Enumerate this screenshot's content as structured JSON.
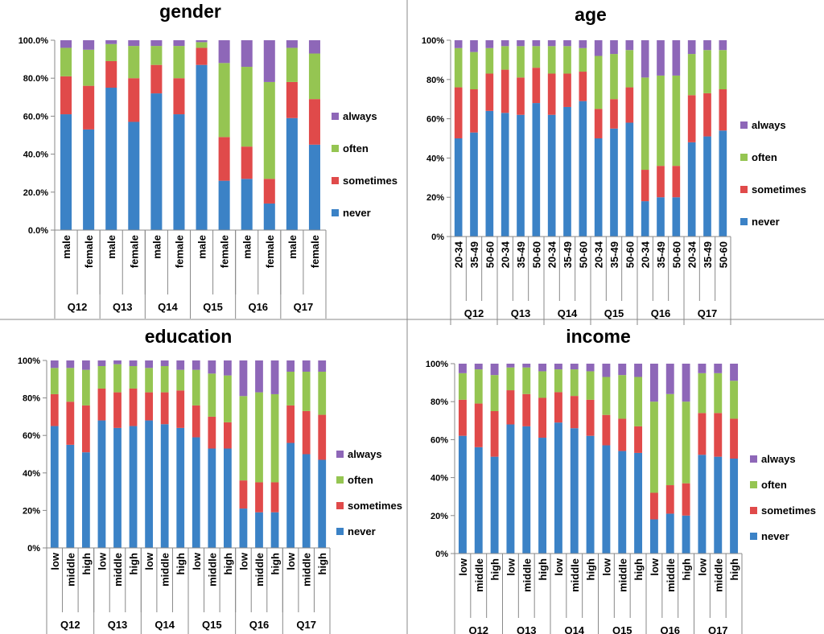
{
  "chart_data": [
    {
      "type": "bar",
      "stacked": true,
      "title": "gender",
      "categories": [
        "male",
        "female",
        "male",
        "female",
        "male",
        "female",
        "male",
        "female",
        "male",
        "female",
        "male",
        "female"
      ],
      "groups": [
        "Q12",
        "Q13",
        "Q14",
        "Q15",
        "Q16",
        "Q17"
      ],
      "series": [
        {
          "name": "never",
          "color": "#3b82c6",
          "values": [
            61,
            53,
            75,
            57,
            72,
            61,
            87,
            26,
            27,
            14,
            59,
            45
          ]
        },
        {
          "name": "sometimes",
          "color": "#e04a4a",
          "values": [
            20,
            23,
            14,
            23,
            15,
            19,
            9,
            23,
            17,
            13,
            19,
            24
          ]
        },
        {
          "name": "often",
          "color": "#95c552",
          "values": [
            15,
            19,
            9,
            17,
            10,
            17,
            3,
            39,
            42,
            51,
            18,
            24
          ]
        },
        {
          "name": "always",
          "color": "#8e67b8",
          "values": [
            4,
            5,
            2,
            3,
            3,
            3,
            1,
            12,
            14,
            22,
            4,
            7
          ]
        }
      ],
      "ylim": [
        0,
        100
      ],
      "yticks": [
        {
          "value": 0,
          "label": "0.0%"
        },
        {
          "value": 20,
          "label": "20.0%"
        },
        {
          "value": 40,
          "label": "40.0%"
        },
        {
          "value": 60,
          "label": "60.0%"
        },
        {
          "value": 80,
          "label": "80.0%"
        },
        {
          "value": 100,
          "label": "100.0%"
        }
      ],
      "legend": "right"
    },
    {
      "type": "bar",
      "stacked": true,
      "title": "age",
      "categories": [
        "20-34",
        "35-49",
        "50-60",
        "20-34",
        "35-49",
        "50-60",
        "20-34",
        "35-49",
        "50-60",
        "20-34",
        "35-49",
        "50-60",
        "20-34",
        "35-49",
        "50-60",
        "20-34",
        "35-49",
        "50-60"
      ],
      "groups": [
        "Q12",
        "Q13",
        "Q14",
        "Q15",
        "Q16",
        "Q17"
      ],
      "series": [
        {
          "name": "never",
          "color": "#3b82c6",
          "values": [
            50,
            53,
            64,
            63,
            62,
            68,
            62,
            66,
            69,
            50,
            55,
            58,
            18,
            20,
            20,
            48,
            51,
            54
          ]
        },
        {
          "name": "sometimes",
          "color": "#e04a4a",
          "values": [
            26,
            22,
            19,
            22,
            19,
            18,
            21,
            17,
            15,
            15,
            15,
            18,
            16,
            16,
            16,
            24,
            22,
            21
          ]
        },
        {
          "name": "often",
          "color": "#95c552",
          "values": [
            20,
            19,
            13,
            12,
            16,
            11,
            14,
            14,
            12,
            27,
            23,
            19,
            47,
            46,
            46,
            21,
            22,
            20
          ]
        },
        {
          "name": "always",
          "color": "#8e67b8",
          "values": [
            4,
            6,
            4,
            3,
            3,
            3,
            3,
            3,
            4,
            8,
            7,
            5,
            19,
            18,
            18,
            7,
            5,
            5
          ]
        }
      ],
      "ylim": [
        0,
        100
      ],
      "yticks": [
        {
          "value": 0,
          "label": "0%"
        },
        {
          "value": 20,
          "label": "20%"
        },
        {
          "value": 40,
          "label": "40%"
        },
        {
          "value": 60,
          "label": "60%"
        },
        {
          "value": 80,
          "label": "80%"
        },
        {
          "value": 100,
          "label": "100%"
        }
      ],
      "legend": "right"
    },
    {
      "type": "bar",
      "stacked": true,
      "title": "education",
      "categories": [
        "low",
        "middle",
        "high",
        "low",
        "middle",
        "high",
        "low",
        "middle",
        "high",
        "low",
        "middle",
        "high",
        "low",
        "middle",
        "high",
        "low",
        "middle",
        "high"
      ],
      "groups": [
        "Q12",
        "Q13",
        "Q14",
        "Q15",
        "Q16",
        "Q17"
      ],
      "series": [
        {
          "name": "never",
          "color": "#3b82c6",
          "values": [
            65,
            55,
            51,
            68,
            64,
            65,
            68,
            66,
            64,
            59,
            53,
            53,
            21,
            19,
            19,
            56,
            50,
            47
          ]
        },
        {
          "name": "sometimes",
          "color": "#e04a4a",
          "values": [
            17,
            23,
            25,
            17,
            19,
            20,
            15,
            17,
            20,
            17,
            17,
            14,
            15,
            16,
            16,
            20,
            23,
            24
          ]
        },
        {
          "name": "often",
          "color": "#95c552",
          "values": [
            14,
            18,
            19,
            12,
            15,
            12,
            13,
            14,
            11,
            19,
            23,
            25,
            45,
            48,
            47,
            18,
            21,
            23
          ]
        },
        {
          "name": "always",
          "color": "#8e67b8",
          "values": [
            4,
            4,
            5,
            3,
            2,
            3,
            4,
            3,
            5,
            5,
            7,
            8,
            19,
            17,
            18,
            6,
            6,
            6
          ]
        }
      ],
      "ylim": [
        0,
        100
      ],
      "yticks": [
        {
          "value": 0,
          "label": "0%"
        },
        {
          "value": 20,
          "label": "20%"
        },
        {
          "value": 40,
          "label": "40%"
        },
        {
          "value": 60,
          "label": "60%"
        },
        {
          "value": 80,
          "label": "80%"
        },
        {
          "value": 100,
          "label": "100%"
        }
      ],
      "legend": "right"
    },
    {
      "type": "bar",
      "stacked": true,
      "title": "income",
      "categories": [
        "low",
        "middle",
        "high",
        "low",
        "middle",
        "high",
        "low",
        "middle",
        "high",
        "low",
        "middle",
        "high",
        "low",
        "middle",
        "high",
        "low",
        "middle",
        "high"
      ],
      "groups": [
        "Q12",
        "Q13",
        "Q14",
        "Q15",
        "Q16",
        "Q17"
      ],
      "series": [
        {
          "name": "never",
          "color": "#3b82c6",
          "values": [
            62,
            56,
            51,
            68,
            67,
            61,
            69,
            66,
            62,
            57,
            54,
            53,
            18,
            21,
            20,
            52,
            51,
            50
          ]
        },
        {
          "name": "sometimes",
          "color": "#e04a4a",
          "values": [
            19,
            23,
            24,
            18,
            17,
            21,
            16,
            17,
            19,
            16,
            17,
            14,
            14,
            15,
            17,
            22,
            23,
            21
          ]
        },
        {
          "name": "often",
          "color": "#95c552",
          "values": [
            14,
            18,
            19,
            12,
            14,
            14,
            12,
            14,
            15,
            20,
            23,
            26,
            48,
            48,
            43,
            21,
            21,
            20
          ]
        },
        {
          "name": "always",
          "color": "#8e67b8",
          "values": [
            5,
            3,
            6,
            2,
            2,
            4,
            3,
            3,
            4,
            7,
            6,
            7,
            20,
            16,
            20,
            5,
            5,
            9
          ]
        }
      ],
      "ylim": [
        0,
        100
      ],
      "yticks": [
        {
          "value": 0,
          "label": "0%"
        },
        {
          "value": 20,
          "label": "20%"
        },
        {
          "value": 40,
          "label": "40%"
        },
        {
          "value": 60,
          "label": "60%"
        },
        {
          "value": 80,
          "label": "80%"
        },
        {
          "value": 100,
          "label": "100%"
        }
      ],
      "legend": "right"
    }
  ]
}
